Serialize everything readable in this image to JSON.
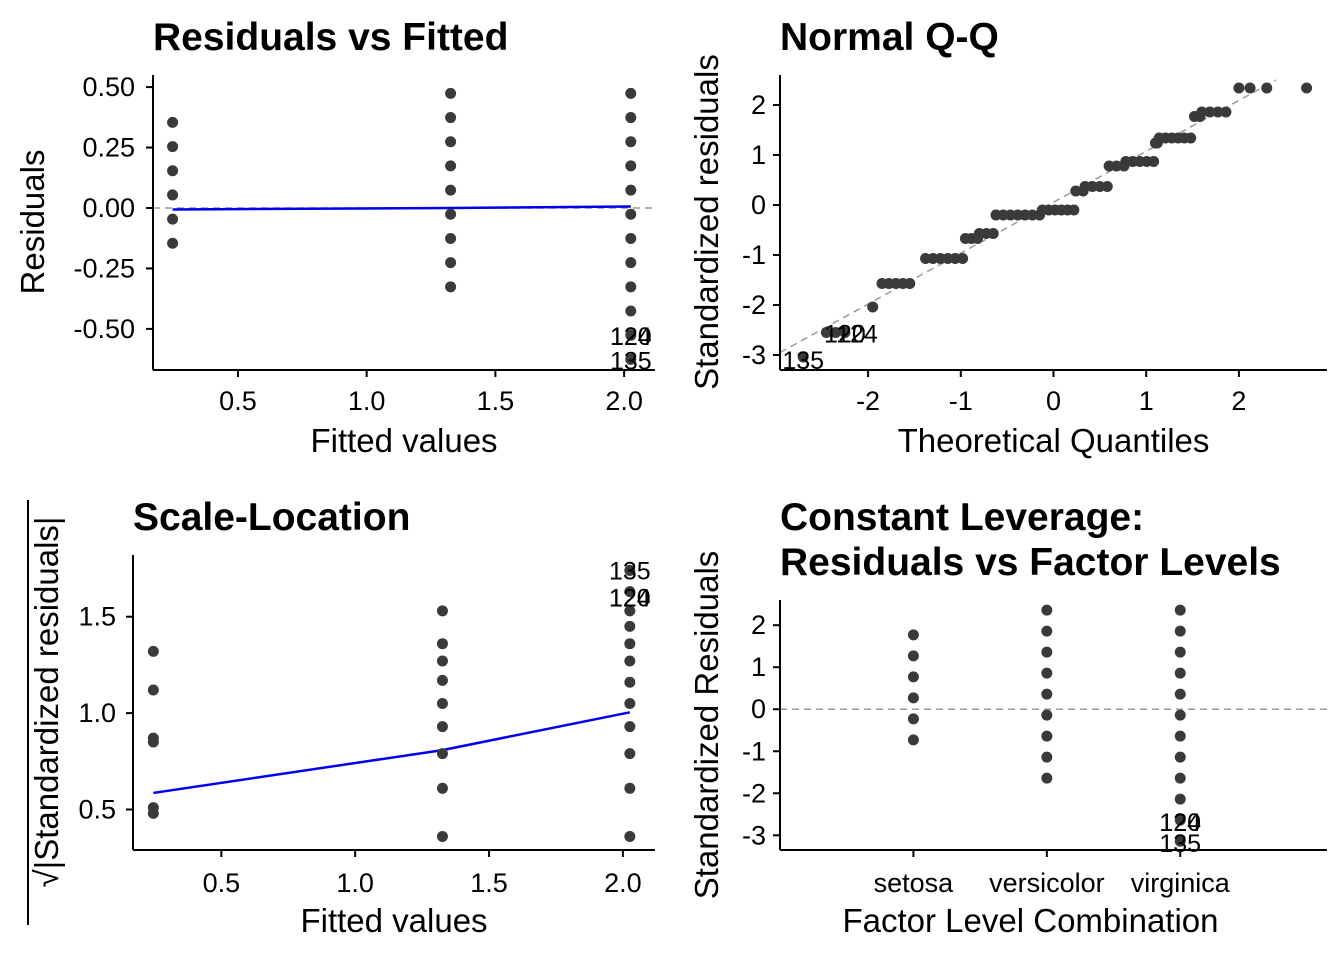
{
  "colors": {
    "points": "#3a3a3a",
    "smooth": "#0000ee",
    "reference": "#9a9a9a",
    "axis": "#000000"
  },
  "chart_data": [
    {
      "id": "p1",
      "type": "scatter",
      "title": "Residuals vs Fitted",
      "xlabel": "Fitted values",
      "ylabel": "Residuals",
      "xlim": [
        0.17,
        2.12
      ],
      "ylim": [
        -0.67,
        0.55
      ],
      "xticks": [
        0.5,
        1.0,
        1.5,
        2.0
      ],
      "xtick_labels": [
        "0.5",
        "1.0",
        "1.5",
        "2.0"
      ],
      "yticks": [
        -0.5,
        -0.25,
        0.0,
        0.25,
        0.5
      ],
      "ytick_labels": [
        "-0.50",
        "-0.25",
        "0.00",
        "0.25",
        "0.50"
      ],
      "reference_line": {
        "type": "horizontal",
        "y": 0
      },
      "smooth": {
        "x": [
          0.246,
          1.326,
          2.026
        ],
        "y": [
          -0.006,
          0.0,
          0.006
        ]
      },
      "points": [
        [
          0.246,
          0.354
        ],
        [
          0.246,
          0.254
        ],
        [
          0.246,
          0.154
        ],
        [
          0.246,
          0.054
        ],
        [
          0.246,
          -0.046
        ],
        [
          0.246,
          -0.146
        ],
        [
          1.326,
          0.474
        ],
        [
          1.326,
          0.374
        ],
        [
          1.326,
          0.274
        ],
        [
          1.326,
          0.174
        ],
        [
          1.326,
          0.074
        ],
        [
          1.326,
          -0.026
        ],
        [
          1.326,
          -0.126
        ],
        [
          1.326,
          -0.226
        ],
        [
          1.326,
          -0.326
        ],
        [
          2.026,
          0.474
        ],
        [
          2.026,
          0.374
        ],
        [
          2.026,
          0.274
        ],
        [
          2.026,
          0.174
        ],
        [
          2.026,
          0.074
        ],
        [
          2.026,
          -0.026
        ],
        [
          2.026,
          -0.126
        ],
        [
          2.026,
          -0.226
        ],
        [
          2.026,
          -0.326
        ],
        [
          2.026,
          -0.426
        ],
        [
          2.026,
          -0.526
        ],
        [
          2.026,
          -0.626
        ]
      ],
      "point_labels": [
        {
          "text": "120",
          "x": 2.026,
          "y": -0.53
        },
        {
          "text": "124",
          "x": 2.026,
          "y": -0.53
        },
        {
          "text": "135",
          "x": 2.026,
          "y": -0.63
        }
      ]
    },
    {
      "id": "p2",
      "type": "scatter",
      "title": "Normal Q-Q",
      "xlabel": "Theoretical Quantiles",
      "ylabel": "Standardized residuals",
      "xlim": [
        -2.95,
        2.95
      ],
      "ylim": [
        -3.3,
        2.6
      ],
      "xticks": [
        -2,
        -1,
        0,
        1,
        2
      ],
      "xtick_labels": [
        "-2",
        "-1",
        "0",
        "1",
        "2"
      ],
      "yticks": [
        -3,
        -2,
        -1,
        0,
        1,
        2
      ],
      "ytick_labels": [
        "-3",
        "-2",
        "-1",
        "0",
        "1",
        "2"
      ],
      "reference_line": {
        "type": "diagonal",
        "x": [
          -2.95,
          2.4
        ],
        "y": [
          -2.95,
          2.5
        ]
      },
      "point_groups": [
        {
          "y": -3.04,
          "x": [
            -2.7
          ]
        },
        {
          "y": -2.55,
          "x": [
            -2.45,
            -2.35,
            -2.25
          ]
        },
        {
          "y": -2.04,
          "x": [
            -1.95
          ]
        },
        {
          "y": -1.57,
          "x": [
            -1.85,
            -1.55
          ]
        },
        {
          "y": -1.07,
          "x": [
            -1.38,
            -0.98
          ]
        },
        {
          "y": -0.67,
          "x": [
            -0.95,
            -0.82
          ]
        },
        {
          "y": -0.57,
          "x": [
            -0.8,
            -0.65
          ]
        },
        {
          "y": -0.2,
          "x": [
            -0.62,
            -0.15
          ]
        },
        {
          "y": -0.1,
          "x": [
            -0.12,
            0.22
          ]
        },
        {
          "y": 0.28,
          "x": [
            0.24,
            0.32
          ]
        },
        {
          "y": 0.37,
          "x": [
            0.34,
            0.58
          ]
        },
        {
          "y": 0.78,
          "x": [
            0.6,
            0.76
          ]
        },
        {
          "y": 0.87,
          "x": [
            0.78,
            1.08
          ]
        },
        {
          "y": 1.24,
          "x": [
            1.1,
            1.12
          ]
        },
        {
          "y": 1.34,
          "x": [
            1.14,
            1.48
          ]
        },
        {
          "y": 1.77,
          "x": [
            1.52,
            1.58
          ]
        },
        {
          "y": 1.86,
          "x": [
            1.6,
            1.86
          ]
        },
        {
          "y": 2.34,
          "x": [
            2.0,
            2.12,
            2.3,
            2.73
          ]
        }
      ],
      "point_labels": [
        {
          "text": "135",
          "x": -2.7,
          "y": -3.1
        },
        {
          "text": "120",
          "x": -2.25,
          "y": -2.57
        },
        {
          "text": "124",
          "x": -2.12,
          "y": -2.57
        }
      ]
    },
    {
      "id": "p3",
      "type": "scatter",
      "title": "Scale-Location",
      "xlabel": "Fitted values",
      "ylabel": "|Standardized residuals|",
      "ylabel_prefix": "√",
      "xlim": [
        0.17,
        2.12
      ],
      "ylim": [
        0.29,
        1.82
      ],
      "xticks": [
        0.5,
        1.0,
        1.5,
        2.0
      ],
      "xtick_labels": [
        "0.5",
        "1.0",
        "1.5",
        "2.0"
      ],
      "yticks": [
        0.5,
        1.0,
        1.5
      ],
      "ytick_labels": [
        "0.5",
        "1.0",
        "1.5"
      ],
      "smooth": {
        "x": [
          0.246,
          1.326,
          2.026
        ],
        "y": [
          0.586,
          0.808,
          1.004
        ]
      },
      "points": [
        [
          0.246,
          1.32
        ],
        [
          0.246,
          1.12
        ],
        [
          0.246,
          0.87
        ],
        [
          0.246,
          0.85
        ],
        [
          0.246,
          0.51
        ],
        [
          0.246,
          0.48
        ],
        [
          1.326,
          1.53
        ],
        [
          1.326,
          1.36
        ],
        [
          1.326,
          1.27
        ],
        [
          1.326,
          1.17
        ],
        [
          1.326,
          1.05
        ],
        [
          1.326,
          0.93
        ],
        [
          1.326,
          0.79
        ],
        [
          1.326,
          0.61
        ],
        [
          1.326,
          0.36
        ],
        [
          2.026,
          1.74
        ],
        [
          2.026,
          1.63
        ],
        [
          2.026,
          1.53
        ],
        [
          2.026,
          1.45
        ],
        [
          2.026,
          1.36
        ],
        [
          2.026,
          1.27
        ],
        [
          2.026,
          1.16
        ],
        [
          2.026,
          1.05
        ],
        [
          2.026,
          0.93
        ],
        [
          2.026,
          0.79
        ],
        [
          2.026,
          0.61
        ],
        [
          2.026,
          0.36
        ]
      ],
      "point_labels": [
        {
          "text": "135",
          "x": 2.026,
          "y": 1.74
        },
        {
          "text": "120",
          "x": 2.026,
          "y": 1.6
        },
        {
          "text": "124",
          "x": 2.026,
          "y": 1.6
        }
      ]
    },
    {
      "id": "p4",
      "type": "scatter",
      "title": "Constant Leverage:",
      "title_line2": "Residuals vs Factor Levels",
      "xlabel": "Factor Level Combination",
      "ylabel": "Standardized Residuals",
      "categories": [
        "setosa",
        "versicolor",
        "virginica"
      ],
      "xlim": [
        0,
        4.1
      ],
      "ylim": [
        -3.35,
        2.6
      ],
      "yticks": [
        -3,
        -2,
        -1,
        0,
        1,
        2
      ],
      "ytick_labels": [
        "-3",
        "-2",
        "-1",
        "0",
        "1",
        "2"
      ],
      "reference_line": {
        "type": "horizontal",
        "y": 0
      },
      "series": [
        {
          "category": "setosa",
          "values": [
            1.77,
            1.27,
            0.77,
            0.27,
            -0.23,
            -0.73
          ]
        },
        {
          "category": "versicolor",
          "values": [
            2.36,
            1.86,
            1.36,
            0.86,
            0.36,
            -0.14,
            -0.64,
            -1.14,
            -1.64
          ]
        },
        {
          "category": "virginica",
          "values": [
            2.36,
            1.86,
            1.36,
            0.86,
            0.36,
            -0.14,
            -0.64,
            -1.14,
            -1.64,
            -2.14,
            -2.64,
            -3.14
          ]
        }
      ],
      "point_labels": [
        {
          "text": "120",
          "x": 3,
          "y": -2.68
        },
        {
          "text": "124",
          "x": 3,
          "y": -2.68
        },
        {
          "text": "135",
          "x": 3,
          "y": -3.18
        }
      ]
    }
  ]
}
